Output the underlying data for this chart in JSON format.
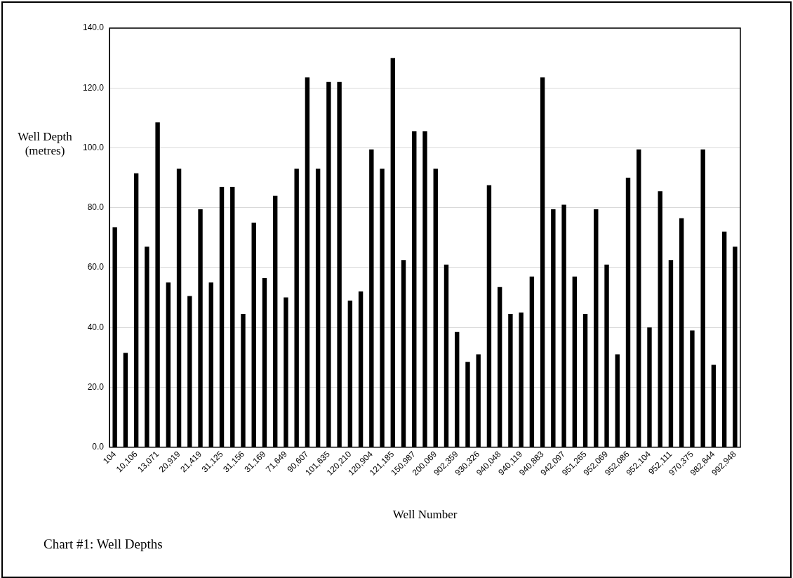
{
  "chart_data": {
    "type": "bar",
    "xlabel": "Well Number",
    "ylabel": "Well Depth\n(metres)",
    "categories": [
      "104",
      null,
      "10,106",
      null,
      "13,071",
      null,
      "20,919",
      null,
      "21,419",
      null,
      "31,125",
      null,
      "31,156",
      null,
      "31,169",
      null,
      "71,649",
      null,
      "90,607",
      null,
      "101,635",
      null,
      "120,210",
      null,
      "120,904",
      null,
      "121,185",
      null,
      "150,987",
      null,
      "200,069",
      null,
      "902,359",
      null,
      "930,326",
      null,
      "940,048",
      null,
      "940,119",
      null,
      "940,883",
      null,
      "942,097",
      null,
      "951,265",
      null,
      "952,069",
      null,
      "952,086",
      null,
      "952,104",
      null,
      "952,111",
      null,
      "970,375",
      null,
      "982,644",
      null,
      "992,948"
    ],
    "values": [
      73.5,
      31.5,
      91.5,
      67,
      108.5,
      55,
      93,
      50.5,
      79.5,
      55,
      87,
      87,
      44.5,
      75,
      56.5,
      84,
      50,
      93,
      123.5,
      93,
      122,
      122,
      49,
      52,
      99.5,
      93,
      130,
      62.5,
      105.5,
      105.5,
      93,
      61,
      38.5,
      28.5,
      31,
      87.5,
      53.5,
      44.5,
      45,
      57,
      123.5,
      79.5,
      81,
      57,
      44.5,
      79.5,
      61,
      31,
      90,
      99.5,
      40,
      85.5,
      62.5,
      76.5,
      39,
      99.5,
      27.5,
      72,
      67
    ],
    "color": "#000000",
    "ylim": [
      0,
      140
    ],
    "yticks": [
      {
        "value": 0,
        "label": "0.0"
      },
      {
        "value": 20,
        "label": "20.0"
      },
      {
        "value": 40,
        "label": "40.0"
      },
      {
        "value": 60,
        "label": "60.0"
      },
      {
        "value": 80,
        "label": "80.0"
      },
      {
        "value": 100,
        "label": "100.0"
      },
      {
        "value": 120,
        "label": "120.0"
      },
      {
        "value": 140,
        "label": "140.0"
      }
    ],
    "grid": "y",
    "legend": false,
    "annotations": [
      "Chart #1: Well Depths"
    ]
  }
}
